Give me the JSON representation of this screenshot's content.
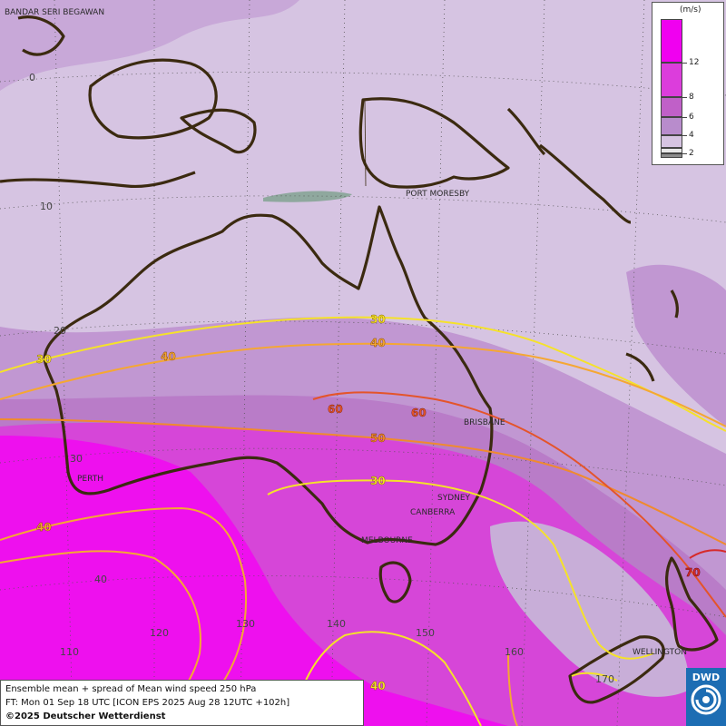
{
  "legend": {
    "unit": "(m/s)",
    "ticks": [
      "12",
      "8",
      "6",
      "4",
      "2"
    ],
    "colors": [
      "#f000f0",
      "#dc3ddc",
      "#c060c8",
      "#b88ccc",
      "#d6c4e2",
      "#e8e8e8",
      "#8c8c8c"
    ]
  },
  "info": {
    "line1": "Ensemble mean + spread of Mean wind speed 250 hPa",
    "line2": "FT: Mon 01 Sep 18 UTC [ICON EPS 2025 Aug 28 12UTC +102h]",
    "line3": "©2025 Deutscher Wetterdienst"
  },
  "logo": {
    "text": "DWD"
  },
  "cities": {
    "bandar": "BANDAR SERI BEGAWAN",
    "port_moresby": "PORT MORESBY",
    "brisbane": "BRISBANE",
    "perth": "PERTH",
    "sydney": "SYDNEY",
    "canberra": "CANBERRA",
    "melbourne": "MELBOURNE",
    "wellington": "WELLINGTON"
  },
  "grid_labels": {
    "lat_0": "0",
    "lat_10": "10",
    "lat_20": "20",
    "lat_30": "30",
    "lat_40": "40",
    "lon_110": "110",
    "lon_120": "120",
    "lon_130": "130",
    "lon_140": "140",
    "lon_150": "150",
    "lon_160": "160",
    "lon_170": "170"
  },
  "contour_labels": {
    "c30_a": "30",
    "c30_b": "30",
    "c30_c": "30",
    "c40_a": "40",
    "c40_b": "40",
    "c40_c": "40",
    "c40_d": "40",
    "c50": "50",
    "c60_a": "60",
    "c60_b": "60",
    "c70": "70"
  },
  "contour_colors": {
    "c30": "#f5e22a",
    "c40": "#f5a733",
    "c50": "#f08a2e",
    "c60": "#e4542a",
    "c70": "#d62a2a"
  }
}
